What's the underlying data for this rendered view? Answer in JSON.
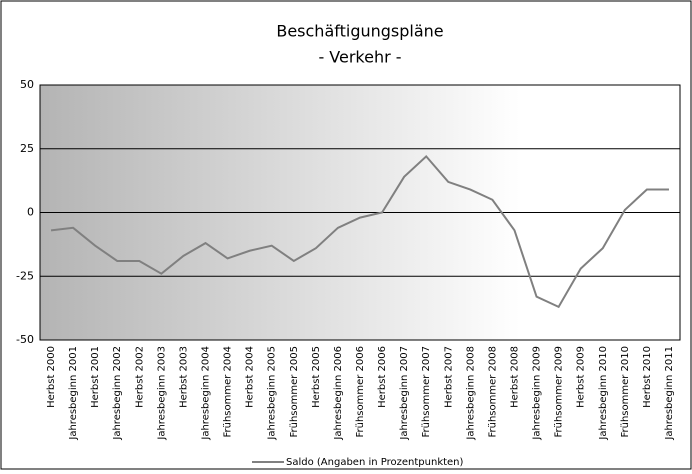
{
  "chart_data": {
    "type": "line",
    "title": "Beschäftigungspläne",
    "subtitle": "- Verkehr -",
    "categories": [
      "Herbst 2000",
      "Jahresbeginn 2001",
      "Herbst 2001",
      "Jahresbeginn 2002",
      "Herbst 2002",
      "Jahresbeginn 2003",
      "Herbst 2003",
      "Jahresbeginn 2004",
      "Frühsommer 2004",
      "Herbst 2004",
      "Jahresbeginn 2005",
      "Frühsommer 2005",
      "Herbst 2005",
      "Jahresbeginn 2006",
      "Frühsommer 2006",
      "Herbst 2006",
      "Jahresbeginn 2007",
      "Frühsommer 2007",
      "Herbst 2007",
      "Jahresbeginn 2008",
      "Frühsommer 2008",
      "Herbst 2008",
      "Jahresbeginn 2009",
      "Frühsommer 2009",
      "Herbst 2009",
      "Jahresbeginn 2010",
      "Frühsommer 2010",
      "Herbst 2010",
      "Jahresbeginn 2011"
    ],
    "series": [
      {
        "name": "Saldo (Angaben in Prozentpunkten)",
        "color": "#808080",
        "values": [
          -7,
          -6,
          -13,
          -19,
          -19,
          -24,
          -17,
          -12,
          -18,
          -15,
          -13,
          -19,
          -14,
          -6,
          -2,
          0,
          14,
          22,
          12,
          9,
          5,
          -7,
          -33,
          -37,
          -22,
          -14,
          1,
          9,
          9
        ]
      }
    ],
    "ylim": [
      -50,
      50
    ],
    "yticks": [
      -50,
      -25,
      0,
      25,
      50
    ],
    "grid": true,
    "legend": "bottom"
  }
}
